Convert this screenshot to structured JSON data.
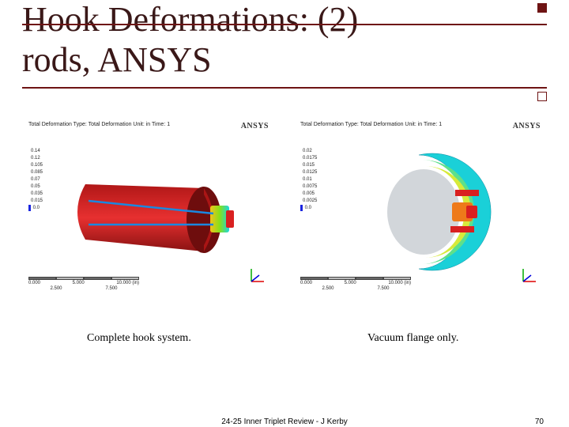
{
  "title": {
    "line1": "Hook Deformations: (2)",
    "line2": "rods, ANSYS",
    "color": "#3a1818",
    "fontsize_pt": 44,
    "rule_color": "#6e1414"
  },
  "figures": {
    "left": {
      "ansys_label": "ANSYS",
      "header": "Total Deformation\nType: Total Deformation\nUnit: in\nTime: 1",
      "legend_values": [
        "0.14",
        "0.12",
        "0.105",
        "0.085",
        "0.07",
        "0.05",
        "0.035",
        "0.015",
        "0.0"
      ],
      "legend_colors": [
        "#d92020",
        "#ee7a1a",
        "#f4c21a",
        "#d7ea1a",
        "#86e01a",
        "#1ae07e",
        "#1ad7e0",
        "#1a7be0",
        "#1a25e0"
      ],
      "model": {
        "type": "half-cylinder-shell-with-rods",
        "shell_color": "#d92020",
        "rod_color": "#1a88e0",
        "flange_colors": [
          "#f4c21a",
          "#86e01a",
          "#1ad7e0"
        ]
      },
      "scalebar": {
        "labels": [
          "0.000",
          "5.000",
          "10.000 (in)"
        ],
        "sublabels": [
          "2.500",
          "7.500"
        ]
      }
    },
    "right": {
      "ansys_label": "ANSYS",
      "header": "Total Deformation\nType: Total Deformation\nUnit: in\nTime: 1",
      "legend_values": [
        "0.02",
        "0.0175",
        "0.015",
        "0.0125",
        "0.01",
        "0.0075",
        "0.005",
        "0.0025",
        "0.0"
      ],
      "legend_colors": [
        "#d92020",
        "#ee7a1a",
        "#f4c21a",
        "#d7ea1a",
        "#86e01a",
        "#1ae07e",
        "#1ad7e0",
        "#1a7be0",
        "#1a25e0"
      ],
      "model": {
        "type": "flange-ring-front",
        "outer_color": "#1ad7e0",
        "mid_color": "#86e01a",
        "inner_color": "#f4c21a",
        "center_color": "#d2d6da"
      },
      "scalebar": {
        "labels": [
          "0.000",
          "5.000",
          "10.000 (in)"
        ],
        "sublabels": [
          "2.500",
          "7.500"
        ]
      }
    }
  },
  "captions": {
    "left": "Complete hook system.",
    "right": "Vacuum flange only."
  },
  "footer": {
    "text": "24-25 Inner Triplet Review - J Kerby",
    "page": "70"
  }
}
